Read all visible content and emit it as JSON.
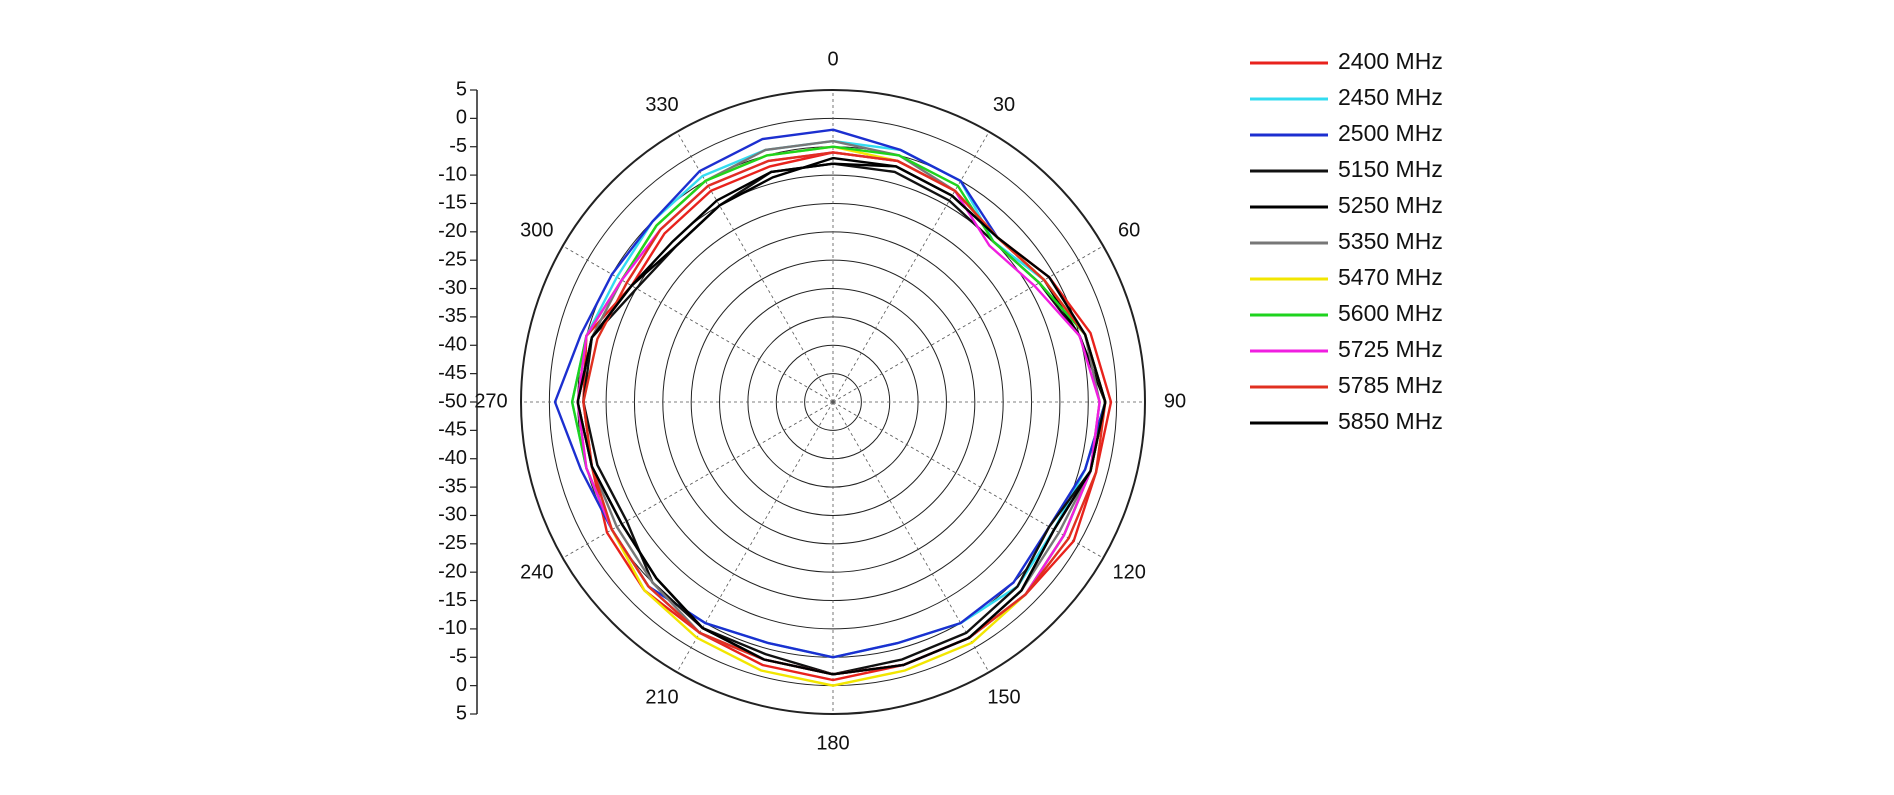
{
  "chart_data": {
    "type": "polar",
    "theta": [
      0,
      15,
      30,
      45,
      60,
      75,
      90,
      105,
      120,
      135,
      150,
      165,
      180,
      195,
      210,
      225,
      240,
      255,
      270,
      285,
      300,
      315,
      330,
      345
    ],
    "rlim": [
      -50,
      5
    ],
    "rticks": [
      -50,
      -45,
      -40,
      -35,
      -30,
      -25,
      -20,
      -15,
      -10,
      -5,
      0,
      5
    ],
    "thetaticks": [
      0,
      30,
      60,
      90,
      120,
      150,
      180,
      210,
      240,
      270,
      300,
      330
    ],
    "series": [
      {
        "name": "2400 MHz",
        "color": "#e8221c",
        "values": [
          -6,
          -6,
          -7,
          -9,
          -6,
          -3,
          -1,
          -2,
          -1,
          -2,
          -2,
          -2,
          -1,
          -2,
          -3,
          -3,
          -4,
          -6,
          -6,
          -5,
          -9,
          -8,
          -7,
          -7
        ]
      },
      {
        "name": "2450 MHz",
        "color": "#33dcf0",
        "values": [
          -4,
          -4,
          -5,
          -10,
          -7,
          -4,
          -2,
          -4,
          -5,
          -4,
          -5,
          -6,
          -5,
          -6,
          -5,
          -4,
          -5,
          -5,
          -4,
          -5,
          -6,
          -5,
          -4,
          -4
        ]
      },
      {
        "name": "2500 MHz",
        "color": "#1c2fd0",
        "values": [
          -2,
          -4,
          -5,
          -9,
          -7,
          -4,
          -2,
          -4,
          -6,
          -5,
          -5,
          -6,
          -5,
          -6,
          -5,
          -4,
          -5,
          -4,
          -1,
          -4,
          -5,
          -5,
          -3,
          -2
        ]
      },
      {
        "name": "5150 MHz",
        "color": "#111111",
        "values": [
          -8,
          -8,
          -9,
          -10,
          -8,
          -5,
          -2,
          -3,
          -6,
          -4,
          -3,
          -3,
          -2,
          -4,
          -4,
          -5,
          -8,
          -7,
          -6,
          -6,
          -10,
          -11,
          -10,
          -8
        ]
      },
      {
        "name": "5250 MHz",
        "color": "#000000",
        "values": [
          -7,
          -7,
          -8,
          -9,
          -7,
          -5,
          -2,
          -3,
          -5,
          -3,
          -2,
          -2,
          -2,
          -3,
          -4,
          -6,
          -7,
          -6,
          -5,
          -6,
          -9,
          -11,
          -10,
          -9
        ]
      },
      {
        "name": "5350 MHz",
        "color": "#777777",
        "values": [
          -4,
          -5,
          -7,
          -9,
          -7,
          -4,
          -3,
          -3,
          -4,
          -3,
          -2,
          -2,
          -2,
          -3,
          -3,
          -5,
          -6,
          -6,
          -5,
          -6,
          -7,
          -6,
          -5,
          -4
        ]
      },
      {
        "name": "5470 MHz",
        "color": "#f2e600",
        "values": [
          -5,
          -6,
          -7,
          -9,
          -7,
          -4,
          -2,
          -3,
          -3,
          -2,
          -1,
          -1,
          0,
          -1,
          -2,
          -3,
          -5,
          -5,
          -5,
          -5,
          -7,
          -6,
          -5,
          -5
        ]
      },
      {
        "name": "5600 MHz",
        "color": "#1ed31e",
        "values": [
          -5,
          -5,
          -6,
          -10,
          -8,
          -4,
          -2,
          -3,
          -3,
          -2,
          -2,
          -2,
          -2,
          -3,
          -3,
          -4,
          -5,
          -5,
          -4,
          -5,
          -7,
          -6,
          -5,
          -5
        ]
      },
      {
        "name": "5725 MHz",
        "color": "#f01ee0",
        "values": [
          -6,
          -6,
          -7,
          -11,
          -9,
          -5,
          -3,
          -3,
          -3,
          -2,
          -2,
          -2,
          -2,
          -3,
          -3,
          -4,
          -5,
          -5,
          -5,
          -5,
          -7,
          -7,
          -6,
          -6
        ]
      },
      {
        "name": "5785 MHz",
        "color": "#e03020",
        "values": [
          -6,
          -6,
          -7,
          -9,
          -7,
          -4,
          -2,
          -2,
          -2,
          -2,
          -2,
          -2,
          -2,
          -3,
          -3,
          -4,
          -5,
          -6,
          -6,
          -7,
          -8,
          -7,
          -6,
          -6
        ]
      },
      {
        "name": "5850 MHz",
        "color": "#000000",
        "values": [
          -8,
          -7,
          -8,
          -9,
          -6,
          -4,
          -2,
          -3,
          -5,
          -3,
          -2,
          -2,
          -2,
          -3,
          -4,
          -6,
          -7,
          -6,
          -5,
          -6,
          -9,
          -10,
          -9,
          -8
        ]
      }
    ]
  }
}
